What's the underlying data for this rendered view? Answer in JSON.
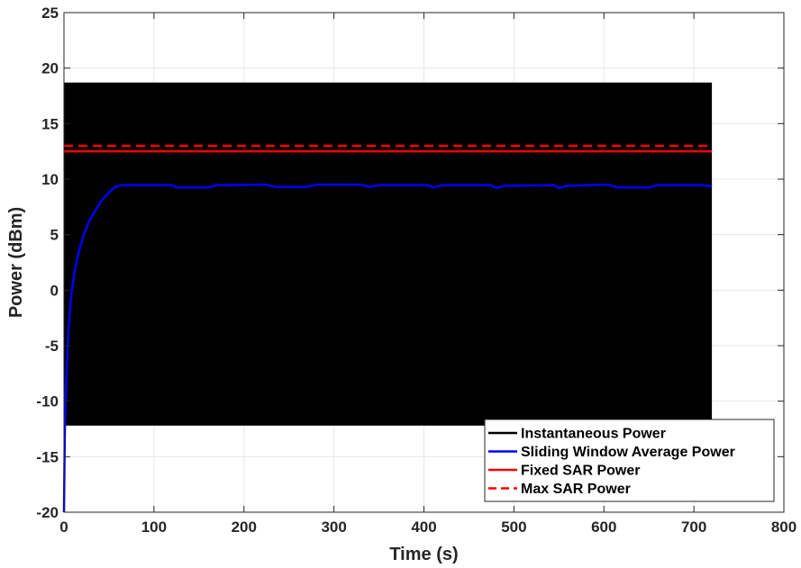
{
  "chart_data": {
    "type": "line",
    "title": "",
    "xlabel": "Time (s)",
    "ylabel": "Power (dBm)",
    "xlim": [
      0,
      800
    ],
    "ylim": [
      -20,
      25
    ],
    "xticks": [
      0,
      100,
      200,
      300,
      400,
      500,
      600,
      700,
      800
    ],
    "yticks": [
      -20,
      -15,
      -10,
      -5,
      0,
      5,
      10,
      15,
      20,
      25
    ],
    "grid": true,
    "legend_position": "bottom-right",
    "series": [
      {
        "name": "Instantaneous Power",
        "color": "#000000",
        "style": "solid",
        "kind": "band",
        "x_range": [
          0,
          720
        ],
        "low": -12.2,
        "high": 18.7
      },
      {
        "name": "Sliding Window Average Power",
        "color": "#0000ff",
        "style": "solid",
        "x": [
          0,
          0.5,
          1,
          2,
          3,
          5,
          8,
          12,
          17,
          22,
          28,
          35,
          42,
          50,
          57,
          63,
          70,
          120,
          125,
          160,
          170,
          225,
          235,
          270,
          280,
          330,
          340,
          350,
          405,
          410,
          420,
          475,
          480,
          490,
          545,
          550,
          560,
          605,
          615,
          650,
          660,
          710,
          720
        ],
        "y": [
          -20,
          -16,
          -12.5,
          -9.5,
          -7,
          -3.5,
          -0.5,
          1.8,
          3.6,
          5.0,
          6.2,
          7.2,
          8.1,
          8.8,
          9.3,
          9.45,
          9.45,
          9.45,
          9.25,
          9.25,
          9.45,
          9.5,
          9.3,
          9.3,
          9.5,
          9.5,
          9.3,
          9.45,
          9.45,
          9.25,
          9.45,
          9.45,
          9.2,
          9.4,
          9.45,
          9.2,
          9.4,
          9.5,
          9.25,
          9.25,
          9.45,
          9.45,
          9.35
        ]
      },
      {
        "name": "Fixed SAR Power",
        "color": "#ff0000",
        "style": "solid",
        "x": [
          0,
          720
        ],
        "y": [
          12.5,
          12.5
        ]
      },
      {
        "name": "Max SAR Power",
        "color": "#ff0000",
        "style": "dashed",
        "x": [
          0,
          720
        ],
        "y": [
          13,
          13
        ]
      }
    ]
  }
}
